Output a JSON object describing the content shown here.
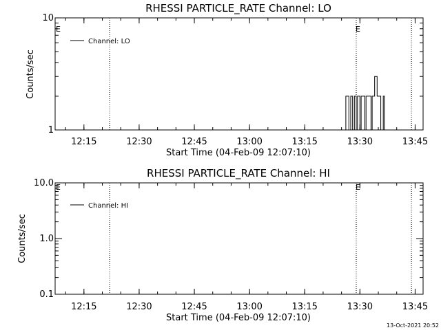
{
  "chart_data": [
    {
      "type": "line",
      "title": "RHESSI PARTICLE_RATE Channel: LO",
      "xlabel": "Start Time (04-Feb-09 12:07:10)",
      "ylabel": "Counts/sec",
      "yscale": "log",
      "ylim": [
        1,
        10
      ],
      "yticks": [
        "1",
        "10"
      ],
      "xlim": [
        "12:07:10",
        "13:47:10"
      ],
      "xticks": [
        "12:15",
        "12:30",
        "12:45",
        "13:00",
        "13:15",
        "13:30",
        "13:45"
      ],
      "vlines": [
        "12:22:00",
        "13:29:00",
        "13:44:00"
      ],
      "markers": [
        "E",
        "E"
      ],
      "legend": "Channel: LO",
      "grid": false,
      "series": [
        {
          "name": "Channel: LO",
          "x": [
            "13:26:00",
            "13:26:10",
            "13:26:40",
            "13:27:00",
            "13:27:20",
            "13:27:30",
            "13:27:50",
            "13:28:00",
            "13:28:20",
            "13:28:30",
            "13:28:50",
            "13:29:00",
            "13:29:20",
            "13:29:30",
            "13:29:50",
            "13:30:00",
            "13:30:20",
            "13:31:00",
            "13:31:20",
            "13:31:40",
            "13:32:00",
            "13:32:20",
            "13:32:50",
            "13:33:00",
            "13:33:20",
            "13:33:40",
            "13:34:00",
            "13:34:20",
            "13:34:40",
            "13:35:00",
            "13:35:20",
            "13:35:40",
            "13:36:00",
            "13:36:20",
            "13:36:40",
            "13:37:00",
            "13:37:20"
          ],
          "y": [
            1,
            2,
            2,
            1,
            1,
            2,
            2,
            1,
            1,
            2,
            2,
            1,
            2,
            2,
            2,
            1,
            2,
            2,
            1,
            2,
            2,
            2,
            2,
            1,
            2,
            2,
            3,
            3,
            2,
            2,
            2,
            1,
            1,
            2,
            1,
            1,
            1
          ]
        }
      ]
    },
    {
      "type": "line",
      "title": "RHESSI PARTICLE_RATE Channel: HI",
      "xlabel": "Start Time (04-Feb-09 12:07:10)",
      "ylabel": "Counts/sec",
      "yscale": "log",
      "ylim": [
        0.1,
        10
      ],
      "yticks": [
        "0.1",
        "1.0",
        "10.0"
      ],
      "xlim": [
        "12:07:10",
        "13:47:10"
      ],
      "xticks": [
        "12:15",
        "12:30",
        "12:45",
        "13:00",
        "13:15",
        "13:30",
        "13:45"
      ],
      "vlines": [
        "12:22:00",
        "13:29:00",
        "13:44:00"
      ],
      "markers": [
        "E",
        "E"
      ],
      "legend": "Channel: HI",
      "grid": false,
      "series": [
        {
          "name": "Channel: HI",
          "x": [],
          "y": []
        }
      ]
    }
  ],
  "footer": {
    "timestamp": "13-Oct-2021 20:52"
  }
}
